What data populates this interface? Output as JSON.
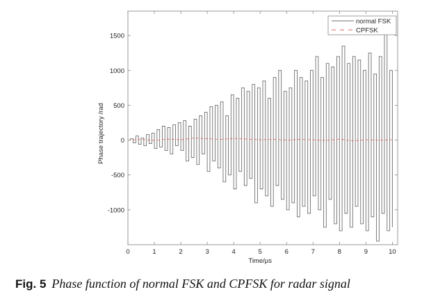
{
  "chart_data": {
    "type": "line",
    "title": "",
    "xlabel": "Time/µs",
    "ylabel": "Phase trajectory /rad",
    "xlim": [
      0,
      10.2
    ],
    "ylim": [
      -1500,
      1850
    ],
    "xticks": [
      0,
      1,
      2,
      3,
      4,
      5,
      6,
      7,
      8,
      9,
      10
    ],
    "xtick_labels": [
      "0",
      "1",
      "2",
      "3",
      "4",
      "5",
      "6",
      "7",
      "8",
      "9",
      "10"
    ],
    "yticks": [
      -1000,
      -500,
      0,
      500,
      1000,
      1500
    ],
    "ytick_labels": [
      "-1000",
      "-500",
      "0",
      "500",
      "1000",
      "1500"
    ],
    "grid": false,
    "legend_position": "top-right",
    "series": [
      {
        "name": "normal FSK",
        "color": "#6e6e6e",
        "style": "solid",
        "x": [
          0,
          0.1,
          0.2,
          0.3,
          0.4,
          0.5,
          0.6,
          0.7,
          0.8,
          0.9,
          1.0,
          1.1,
          1.2,
          1.3,
          1.4,
          1.5,
          1.6,
          1.7,
          1.8,
          1.9,
          2.0,
          2.1,
          2.2,
          2.3,
          2.4,
          2.5,
          2.6,
          2.7,
          2.8,
          2.9,
          3.0,
          3.1,
          3.2,
          3.3,
          3.4,
          3.5,
          3.6,
          3.7,
          3.8,
          3.9,
          4.0,
          4.1,
          4.2,
          4.3,
          4.4,
          4.5,
          4.6,
          4.7,
          4.8,
          4.9,
          5.0,
          5.1,
          5.2,
          5.3,
          5.4,
          5.5,
          5.6,
          5.7,
          5.8,
          5.9,
          6.0,
          6.1,
          6.2,
          6.3,
          6.4,
          6.5,
          6.6,
          6.7,
          6.8,
          6.9,
          7.0,
          7.1,
          7.2,
          7.3,
          7.4,
          7.5,
          7.6,
          7.7,
          7.8,
          7.9,
          8.0,
          8.1,
          8.2,
          8.3,
          8.4,
          8.5,
          8.6,
          8.7,
          8.8,
          8.9,
          9.0,
          9.1,
          9.2,
          9.3,
          9.4,
          9.5,
          9.6,
          9.7,
          9.8,
          9.9,
          10.0
        ],
        "values": [
          0,
          20,
          -40,
          60,
          -60,
          30,
          -80,
          80,
          -50,
          100,
          -120,
          150,
          -100,
          200,
          -150,
          180,
          -200,
          220,
          -80,
          250,
          -150,
          280,
          -300,
          200,
          -250,
          300,
          -350,
          350,
          -200,
          400,
          -450,
          480,
          -300,
          500,
          -400,
          550,
          -600,
          350,
          -500,
          650,
          -700,
          600,
          -450,
          750,
          -650,
          700,
          -550,
          800,
          -900,
          750,
          -700,
          850,
          -800,
          600,
          -950,
          900,
          -650,
          1000,
          -850,
          700,
          -1000,
          750,
          -900,
          1000,
          -1100,
          900,
          -950,
          850,
          -1050,
          1000,
          -800,
          1200,
          -1000,
          900,
          -1250,
          1100,
          -850,
          1050,
          -1200,
          1200,
          -1300,
          1350,
          -1050,
          1100,
          -1250,
          1200,
          -950,
          1150,
          -1200,
          1000,
          -1300,
          1250,
          -1100,
          950,
          -1450,
          1200,
          -1050,
          1650,
          -1300,
          1000,
          -1250
        ]
      },
      {
        "name": "CPFSK",
        "color": "#e06060",
        "style": "dashed",
        "x": [
          0,
          0.5,
          1,
          1.5,
          2,
          2.5,
          3,
          3.5,
          4,
          4.5,
          5,
          5.5,
          6,
          6.5,
          7,
          7.5,
          8,
          8.5,
          9,
          9.5,
          10
        ],
        "values": [
          0,
          10,
          -5,
          15,
          5,
          30,
          20,
          10,
          25,
          15,
          5,
          10,
          0,
          10,
          5,
          -5,
          15,
          -10,
          5,
          0,
          5
        ]
      }
    ]
  },
  "caption": {
    "figure_label": "Fig. 5",
    "text": "Phase function of normal FSK and CPFSK for radar signal"
  }
}
